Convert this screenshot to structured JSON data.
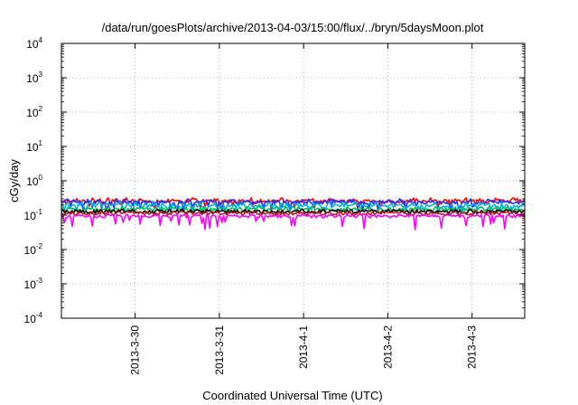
{
  "chart_data": {
    "type": "line",
    "title": "/data/run/goesPlots/archive/2013-04-03/15:00/flux/../bryn/5daysMoon.plot",
    "xlabel": "Coordinated Universal Time (UTC)",
    "ylabel": "cGy/day",
    "y_scale": "log",
    "ylim": [
      0.0001,
      10000
    ],
    "y_ticks": [
      {
        "base": "10",
        "exp": "4",
        "value": 10000
      },
      {
        "base": "10",
        "exp": "3",
        "value": 1000
      },
      {
        "base": "10",
        "exp": "2",
        "value": 100
      },
      {
        "base": "10",
        "exp": "1",
        "value": 10
      },
      {
        "base": "10",
        "exp": "0",
        "value": 1
      },
      {
        "base": "10",
        "exp": "-1",
        "value": 0.1
      },
      {
        "base": "10",
        "exp": "-2",
        "value": 0.01
      },
      {
        "base": "10",
        "exp": "-3",
        "value": 0.001
      },
      {
        "base": "10",
        "exp": "-4",
        "value": 0.0001
      }
    ],
    "xlim": [
      "2013-03-29 03:00",
      "2013-04-03 15:00"
    ],
    "x_ticks": [
      "2013-3-30",
      "2013-3-31",
      "2013-4-1",
      "2013-4-2",
      "2013-4-3"
    ],
    "grid": true,
    "series": [
      {
        "color": "#ff0000",
        "base": 0.26,
        "spike_hi": 0.32,
        "dip_lo": 0.17,
        "seed": 11
      },
      {
        "color": "#2233ff",
        "base": 0.24,
        "spike_hi": 0.3,
        "dip_lo": 0.13,
        "seed": 23
      },
      {
        "color": "#00b0e0",
        "base": 0.19,
        "spike_hi": 0.24,
        "dip_lo": 0.12,
        "seed": 37
      },
      {
        "color": "#00c060",
        "base": 0.15,
        "spike_hi": 0.18,
        "dip_lo": 0.12,
        "seed": 41
      },
      {
        "color": "#000000",
        "base": 0.13,
        "spike_hi": 0.15,
        "dip_lo": 0.11,
        "seed": 53
      },
      {
        "color": "#b02020",
        "base": 0.115,
        "spike_hi": 0.13,
        "dip_lo": 0.1,
        "seed": 67
      },
      {
        "color": "#ff00ff",
        "base": 0.095,
        "spike_hi": 0.105,
        "dip_lo": 0.035,
        "seed": 79
      }
    ]
  }
}
